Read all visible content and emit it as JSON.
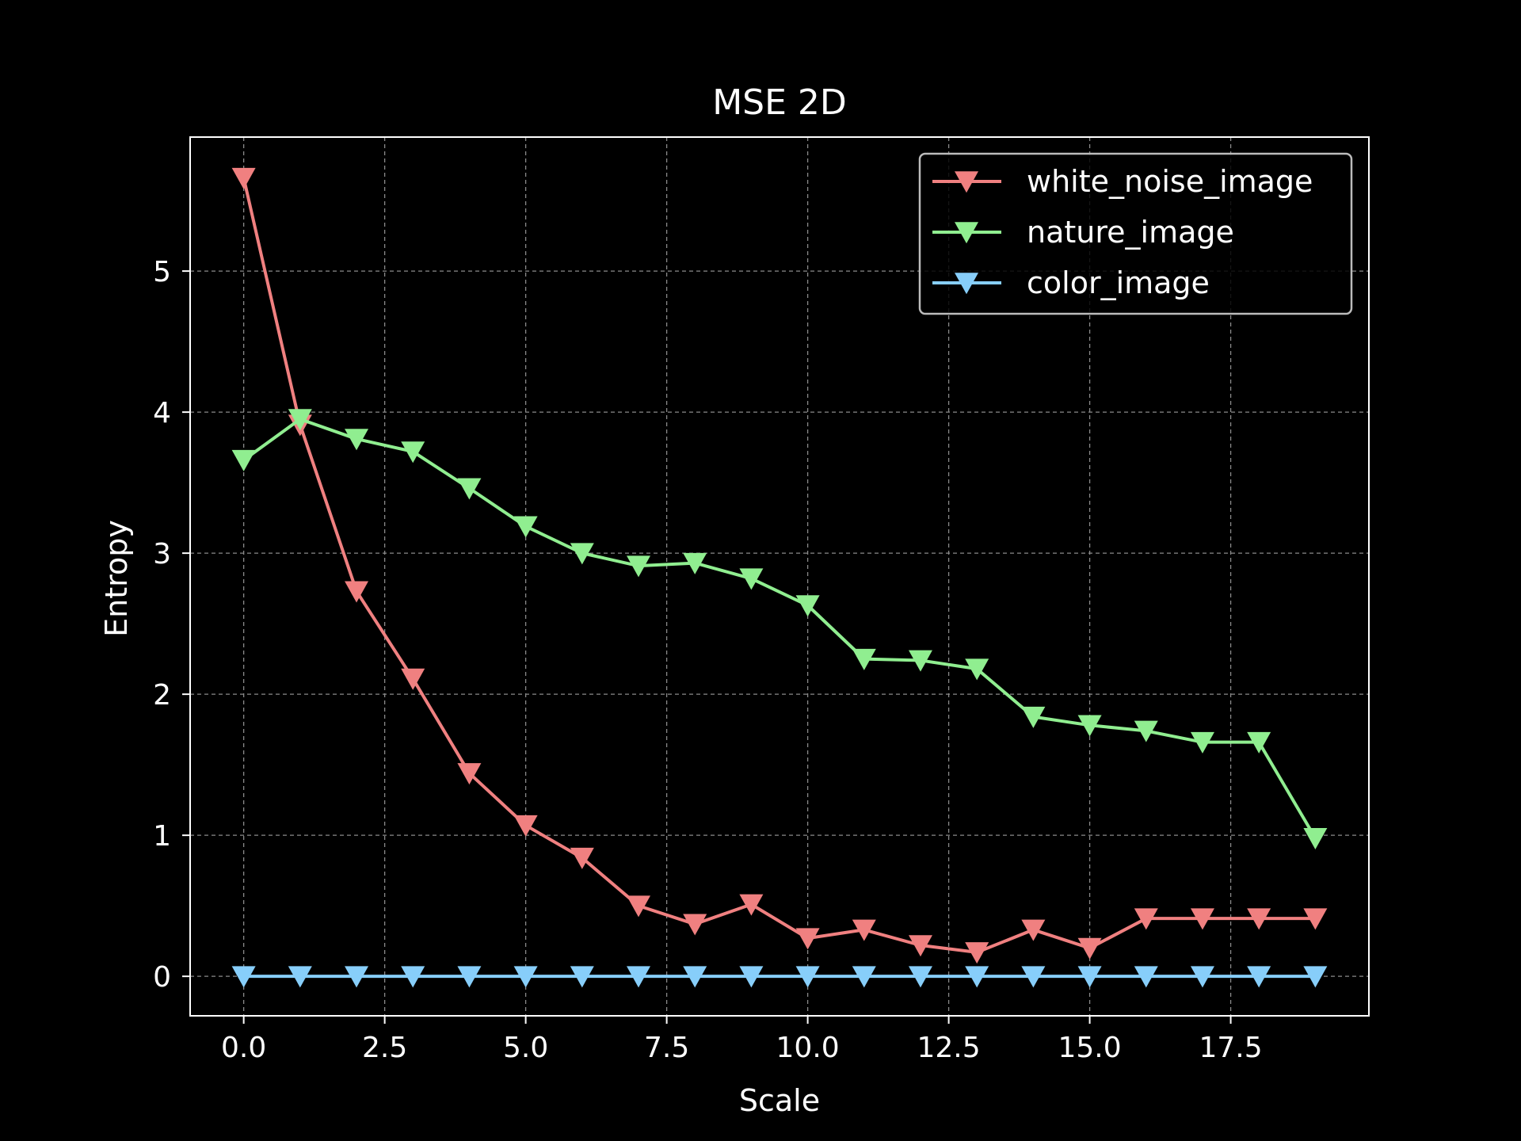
{
  "chart_data": {
    "type": "line",
    "title": "MSE 2D",
    "xlabel": "Scale",
    "ylabel": "Entropy",
    "xlim": [
      -0.95,
      19.95
    ],
    "ylim": [
      -0.28,
      5.95
    ],
    "xticks": [
      0,
      2.5,
      5,
      7.5,
      10,
      12.5,
      15,
      17.5
    ],
    "xtick_labels": [
      "0.0",
      "2.5",
      "5.0",
      "7.5",
      "10.0",
      "12.5",
      "15.0",
      "17.5"
    ],
    "yticks": [
      0,
      1,
      2,
      3,
      4,
      5
    ],
    "ytick_labels": [
      "0",
      "1",
      "2",
      "3",
      "4",
      "5"
    ],
    "grid": true,
    "legend_position": "top-right",
    "x": [
      0,
      1,
      2,
      3,
      4,
      5,
      6,
      7,
      8,
      9,
      10,
      11,
      12,
      13,
      14,
      15,
      16,
      17,
      18,
      19
    ],
    "series": [
      {
        "name": "white_noise_image",
        "color": "#f08080",
        "marker": "triangle-down",
        "values": [
          5.66,
          3.91,
          2.73,
          2.11,
          1.44,
          1.07,
          0.84,
          0.5,
          0.37,
          0.51,
          0.27,
          0.33,
          0.22,
          0.17,
          0.33,
          0.2,
          0.41,
          0.41,
          0.41,
          0.41
        ]
      },
      {
        "name": "nature_image",
        "color": "#90ee90",
        "marker": "triangle-down",
        "values": [
          3.66,
          3.95,
          3.81,
          3.72,
          3.46,
          3.19,
          3.0,
          2.91,
          2.93,
          2.82,
          2.63,
          2.25,
          2.24,
          2.18,
          1.84,
          1.78,
          1.74,
          1.66,
          1.66,
          0.98
        ]
      },
      {
        "name": "color_image",
        "color": "#87cefa",
        "marker": "triangle-down",
        "values": [
          0,
          0,
          0,
          0,
          0,
          0,
          0,
          0,
          0,
          0,
          0,
          0,
          0,
          0,
          0,
          0,
          0,
          0,
          0,
          0
        ]
      }
    ]
  }
}
